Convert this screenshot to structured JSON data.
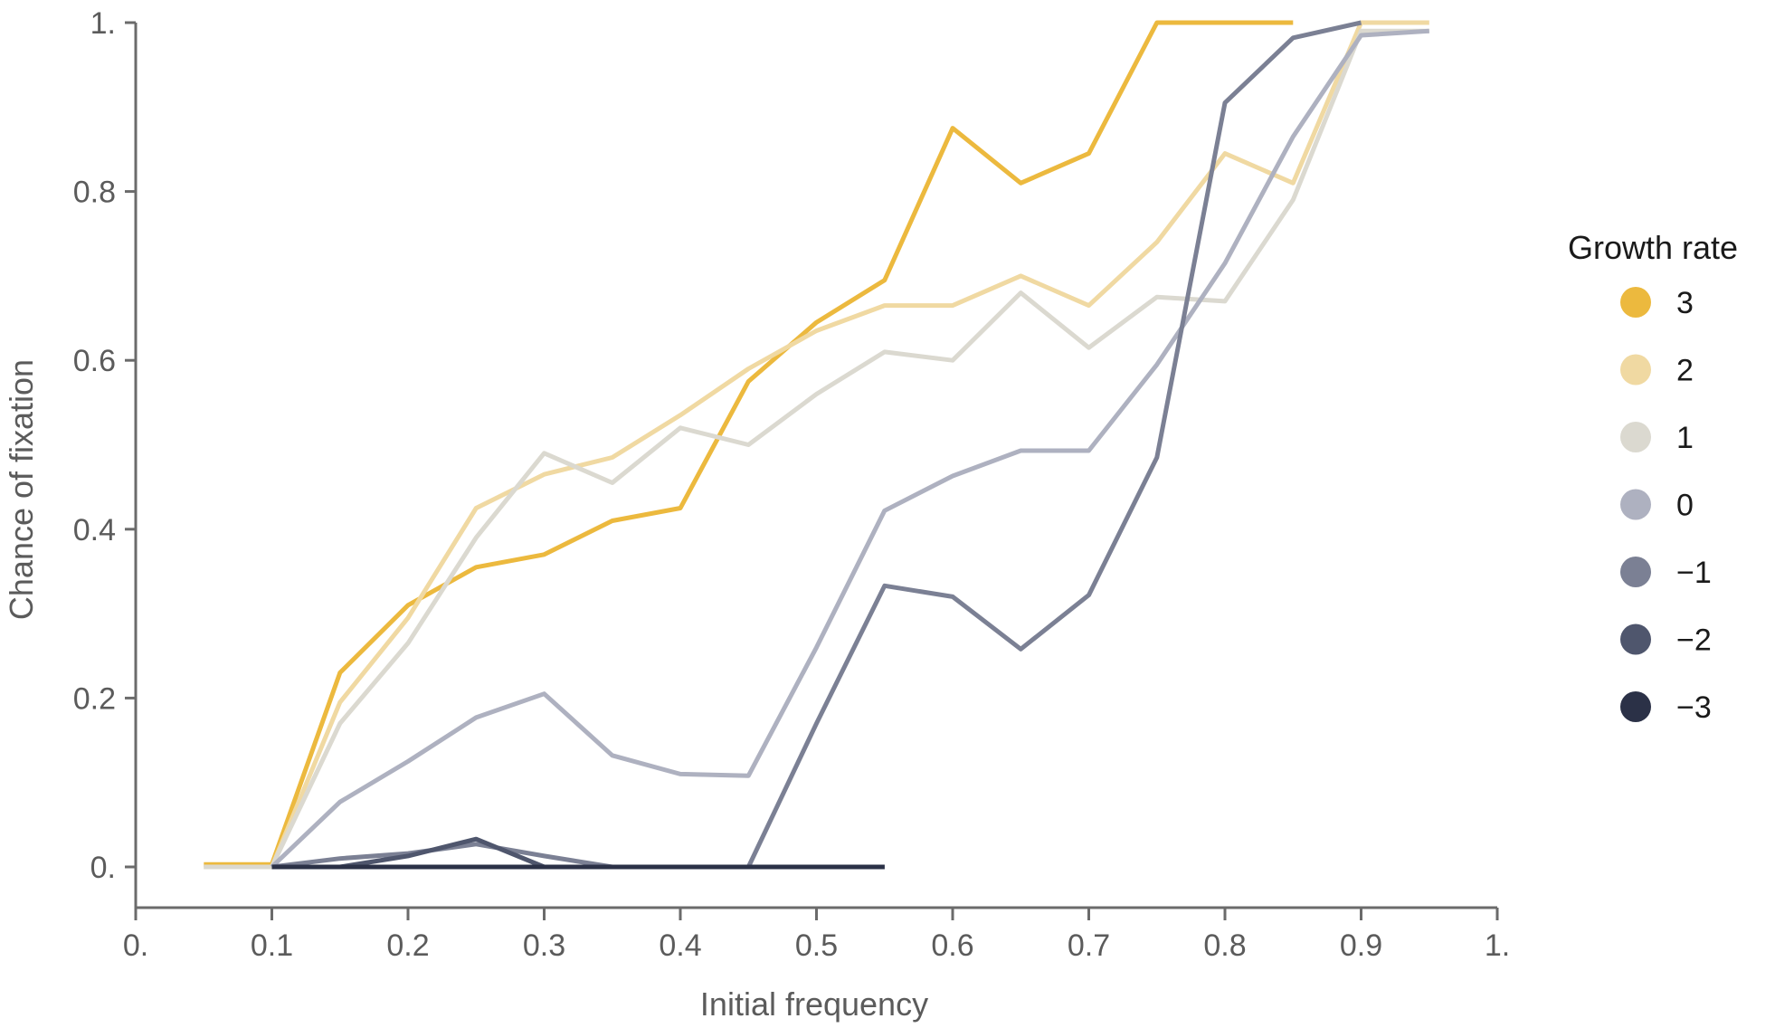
{
  "chart_data": {
    "type": "line",
    "title": "",
    "xlabel": "Initial frequency",
    "ylabel": "Chance of fixation",
    "xlim": [
      0,
      1
    ],
    "ylim": [
      0,
      1
    ],
    "grid": false,
    "legend_position": "right",
    "legend_title": "Growth rate",
    "x_ticks": [
      0,
      0.1,
      0.2,
      0.3,
      0.4,
      0.5,
      0.6,
      0.7,
      0.8,
      0.9,
      1
    ],
    "x_tick_labels": [
      "0.",
      "0.1",
      "0.2",
      "0.3",
      "0.4",
      "0.5",
      "0.6",
      "0.7",
      "0.8",
      "0.9",
      "1."
    ],
    "y_ticks": [
      0,
      0.2,
      0.4,
      0.6,
      0.8,
      1
    ],
    "y_tick_labels": [
      "0.",
      "0.2",
      "0.4",
      "0.6",
      "0.8",
      "1."
    ],
    "series": [
      {
        "name": "3",
        "color": "#ecb93e",
        "x": [
          0.05,
          0.1,
          0.15,
          0.2,
          0.25,
          0.3,
          0.35,
          0.4,
          0.45,
          0.5,
          0.55,
          0.6,
          0.65,
          0.7,
          0.75,
          0.8,
          0.85
        ],
        "y": [
          0.003,
          0.003,
          0.23,
          0.31,
          0.355,
          0.37,
          0.41,
          0.425,
          0.575,
          0.645,
          0.695,
          0.875,
          0.81,
          0.845,
          1.0,
          1.0,
          1.0
        ]
      },
      {
        "name": "2",
        "color": "#f0d9a2",
        "x": [
          0.05,
          0.1,
          0.15,
          0.2,
          0.25,
          0.3,
          0.35,
          0.4,
          0.45,
          0.5,
          0.55,
          0.6,
          0.65,
          0.7,
          0.75,
          0.8,
          0.85,
          0.9,
          0.95
        ],
        "y": [
          0.0,
          0.0,
          0.195,
          0.295,
          0.425,
          0.465,
          0.485,
          0.535,
          0.59,
          0.635,
          0.665,
          0.665,
          0.7,
          0.665,
          0.74,
          0.845,
          0.81,
          1.0,
          1.0
        ]
      },
      {
        "name": "1",
        "color": "#dbd9d0",
        "x": [
          0.05,
          0.1,
          0.15,
          0.2,
          0.25,
          0.3,
          0.35,
          0.4,
          0.45,
          0.5,
          0.55,
          0.6,
          0.65,
          0.7,
          0.75,
          0.8,
          0.85,
          0.9,
          0.95
        ],
        "y": [
          0.0,
          0.0,
          0.17,
          0.265,
          0.39,
          0.49,
          0.455,
          0.52,
          0.5,
          0.56,
          0.61,
          0.6,
          0.68,
          0.615,
          0.675,
          0.67,
          0.79,
          0.99,
          0.99
        ]
      },
      {
        "name": "0",
        "color": "#aeb1c0",
        "x": [
          0.1,
          0.15,
          0.2,
          0.25,
          0.3,
          0.35,
          0.4,
          0.45,
          0.5,
          0.55,
          0.6,
          0.65,
          0.7,
          0.75,
          0.8,
          0.85,
          0.9,
          0.95
        ],
        "y": [
          0.0,
          0.077,
          0.125,
          0.177,
          0.205,
          0.132,
          0.11,
          0.108,
          0.26,
          0.422,
          0.463,
          0.493,
          0.493,
          0.595,
          0.715,
          0.865,
          0.985,
          0.99
        ]
      },
      {
        "name": "−1",
        "color": "#7b8094",
        "x": [
          0.1,
          0.15,
          0.2,
          0.25,
          0.3,
          0.35,
          0.4,
          0.45,
          0.5,
          0.55,
          0.6,
          0.65,
          0.7,
          0.75,
          0.8,
          0.85,
          0.9
        ],
        "y": [
          0.0,
          0.01,
          0.016,
          0.027,
          0.013,
          0.0,
          0.0,
          0.0,
          0.17,
          0.333,
          0.32,
          0.258,
          0.322,
          0.485,
          0.905,
          0.982,
          1.0
        ]
      },
      {
        "name": "−2",
        "color": "#4f566d",
        "x": [
          0.1,
          0.15,
          0.2,
          0.25,
          0.3,
          0.35,
          0.4,
          0.45,
          0.5,
          0.55
        ],
        "y": [
          0.0,
          0.0,
          0.013,
          0.033,
          0.0,
          0.0,
          0.0,
          0.0,
          0.0,
          0.0
        ]
      },
      {
        "name": "−3",
        "color": "#2b3147",
        "x": [
          0.1,
          0.15,
          0.2,
          0.25,
          0.3,
          0.35,
          0.4,
          0.45,
          0.5,
          0.55
        ],
        "y": [
          0.0,
          0.0,
          0.0,
          0.0,
          0.0,
          0.0,
          0.0,
          0.0,
          0.0,
          0.0
        ]
      }
    ]
  }
}
